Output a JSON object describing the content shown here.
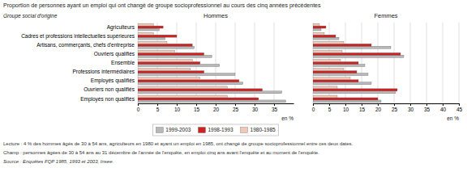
{
  "title": "Proportion de personnes ayant un emploi qui ont changé de groupe socioprofessionnel au cours des cinq années précédentes",
  "annotations": [
    "Lecture : 4  % des hommes âgés de 30 à 54 ans, agriculteurs en 1980 et ayant un emploi en 1985, ont changé de groupe socioprofessionnel entre ces deux dates.",
    "Champ : personnes âgées de 30 à 54 ans au 31 décembre de l'année de l'enquête, en emploi cinq ans avant l'enquête et au moment de l'enquête.",
    "Source : Enquêtes FQP 1985, 1993 et 2003, Insee."
  ],
  "chart_data": [
    {
      "type": "bar",
      "orientation": "horizontal",
      "title": "Hommes",
      "ylabel": "Groupe social d'origine",
      "xlabel": "en %",
      "categories": [
        "Agriculteurs",
        "Cadres et professions intellectuelles supérieures",
        "Artisans, commerçants, chefs d'entreprise",
        "Ouvriers qualifiés",
        "Ensemble",
        "Professions intermédiaires",
        "Employés qualifiés",
        "Ouvriers non qualifiés",
        "Employés non qualifiés"
      ],
      "series": [
        {
          "name": "1999-2003",
          "color": "#b8b8b8",
          "values": [
            5.5,
            7.0,
            14.5,
            19.0,
            21.0,
            25.0,
            27.0,
            37.0,
            38.0
          ]
        },
        {
          "name": "1998-1993",
          "color": "#cc2222",
          "values": [
            6.5,
            10.0,
            14.0,
            17.0,
            16.0,
            17.0,
            26.0,
            32.0,
            31.0
          ]
        },
        {
          "name": "1980-1985",
          "color": "#f0c8b8",
          "values": [
            4.0,
            4.0,
            7.5,
            9.5,
            14.0,
            13.5,
            16.0,
            23.0,
            23.0
          ]
        }
      ],
      "xlim": [
        0,
        40
      ],
      "xticks": [
        0,
        5,
        10,
        15,
        20,
        25,
        30,
        35
      ],
      "grid": true,
      "legend": "bottom"
    },
    {
      "type": "bar",
      "orientation": "horizontal",
      "title": "Femmes",
      "xlabel": "en %",
      "categories": [
        "Agriculteurs",
        "Cadres et professions intellectuelles supérieures",
        "Artisans, commerçants, chefs d'entreprise",
        "Ouvriers qualifiés",
        "Ensemble",
        "Professions intermédiaires",
        "Employés qualifiés",
        "Ouvriers non qualifiés",
        "Employés non qualifiés"
      ],
      "series": [
        {
          "name": "1999-2003",
          "color": "#b8b8b8",
          "values": [
            2.5,
            8.0,
            24.0,
            28.0,
            16.0,
            17.0,
            18.0,
            25.5,
            21.0
          ]
        },
        {
          "name": "1998-1993",
          "color": "#cc2222",
          "values": [
            4.0,
            7.0,
            18.0,
            27.0,
            14.0,
            13.5,
            14.0,
            26.0,
            20.0
          ]
        },
        {
          "name": "1980-1985",
          "color": "#f0c8b8",
          "values": [
            2.0,
            3.5,
            9.5,
            9.0,
            8.5,
            9.5,
            11.5,
            7.5,
            7.5
          ]
        }
      ],
      "xlim": [
        0,
        45
      ],
      "xticks": [
        0,
        5,
        10,
        15,
        20,
        25,
        30,
        35,
        40,
        45
      ],
      "grid": true,
      "tick_labels": "x"
    }
  ]
}
